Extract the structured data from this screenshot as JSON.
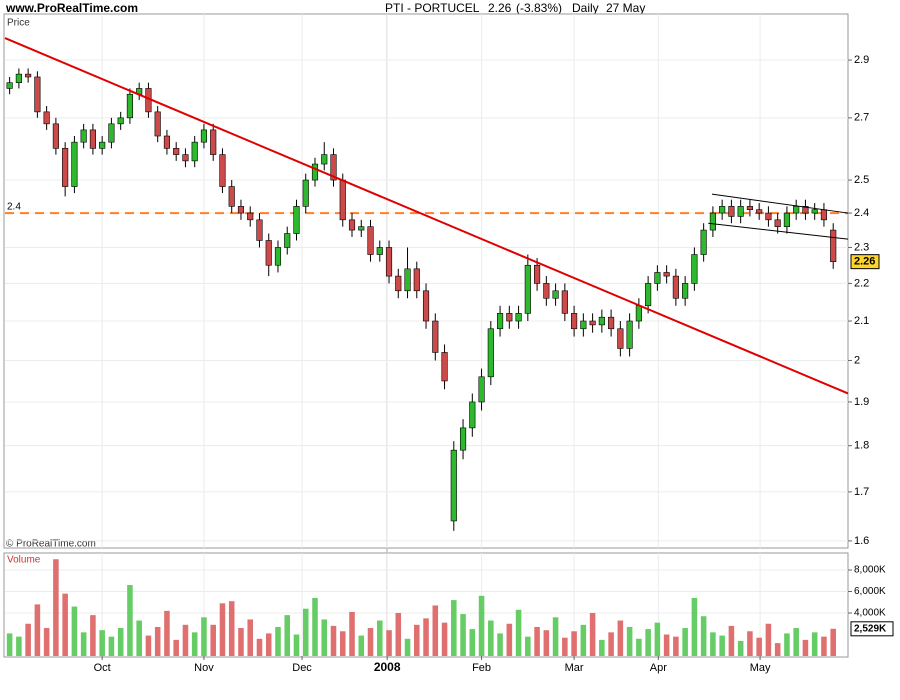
{
  "chart_data": {
    "type": "candlestick",
    "site": "www.ProRealTime.com",
    "symbol": "PTI - PORTUCEL",
    "change": "(-3.83%)",
    "period": "Daily",
    "date": "27 May",
    "copyright": "© ProRealTime.com",
    "price_label": "Price",
    "volume_label": "Volume",
    "log_scale": true,
    "grid": true,
    "up_color": "#2db82d",
    "down_color": "#cc4a4a",
    "volume_up_color": "#66cc66",
    "volume_down_color": "#e07070",
    "xlim": [
      0,
      91.1
    ],
    "xticks": [
      {
        "value": 10.5,
        "label": "Oct"
      },
      {
        "value": 21.5,
        "label": "Nov"
      },
      {
        "value": 32.1,
        "label": "Dec"
      },
      {
        "value": 41.3,
        "label": "2008"
      },
      {
        "value": 51.5,
        "label": "Feb"
      },
      {
        "value": 61.5,
        "label": "Mar"
      },
      {
        "value": 70.6,
        "label": "Apr"
      },
      {
        "value": 81.6,
        "label": "May"
      }
    ],
    "ylim": [
      1.586,
      3.07
    ],
    "yticks": [
      2.9,
      2.7,
      2.5,
      2.4,
      2.3,
      2.2,
      2.1,
      2,
      1.9,
      1.8,
      1.7,
      1.6
    ],
    "open": [
      2.8,
      2.82,
      2.85,
      2.84,
      2.72,
      2.68,
      2.6,
      2.48,
      2.62,
      2.66,
      2.6,
      2.62,
      2.68,
      2.7,
      2.78,
      2.8,
      2.72,
      2.64,
      2.6,
      2.58,
      2.56,
      2.62,
      2.66,
      2.58,
      2.48,
      2.42,
      2.4,
      2.38,
      2.32,
      2.25,
      2.3,
      2.34,
      2.42,
      2.5,
      2.55,
      2.58,
      2.5,
      2.38,
      2.35,
      2.36,
      2.28,
      2.3,
      2.22,
      2.18,
      2.24,
      2.18,
      2.1,
      2.02,
      1.64,
      1.79,
      1.84,
      1.9,
      1.96,
      2.08,
      2.12,
      2.1,
      2.12,
      2.25,
      2.2,
      2.16,
      2.18,
      2.12,
      2.08,
      2.1,
      2.09,
      2.11,
      2.08,
      2.03,
      2.1,
      2.14,
      2.2,
      2.23,
      2.22,
      2.16,
      2.2,
      2.28,
      2.35,
      2.4,
      2.42,
      2.39,
      2.42,
      2.41,
      2.4,
      2.38,
      2.36,
      2.4,
      2.42,
      2.4,
      2.41,
      2.35
    ],
    "high": [
      2.84,
      2.87,
      2.87,
      2.86,
      2.74,
      2.7,
      2.62,
      2.64,
      2.68,
      2.68,
      2.64,
      2.7,
      2.72,
      2.8,
      2.82,
      2.82,
      2.74,
      2.66,
      2.62,
      2.6,
      2.64,
      2.68,
      2.68,
      2.6,
      2.5,
      2.44,
      2.42,
      2.4,
      2.34,
      2.32,
      2.36,
      2.44,
      2.52,
      2.57,
      2.62,
      2.6,
      2.52,
      2.4,
      2.38,
      2.38,
      2.32,
      2.32,
      2.24,
      2.3,
      2.26,
      2.2,
      2.12,
      2.04,
      1.81,
      1.86,
      1.92,
      1.98,
      2.1,
      2.14,
      2.14,
      2.14,
      2.28,
      2.27,
      2.22,
      2.2,
      2.2,
      2.14,
      2.12,
      2.12,
      2.13,
      2.13,
      2.1,
      2.12,
      2.16,
      2.22,
      2.25,
      2.25,
      2.24,
      2.22,
      2.3,
      2.37,
      2.42,
      2.44,
      2.44,
      2.44,
      2.44,
      2.43,
      2.42,
      2.4,
      2.42,
      2.44,
      2.44,
      2.43,
      2.43,
      2.37
    ],
    "low": [
      2.78,
      2.8,
      2.82,
      2.7,
      2.66,
      2.58,
      2.45,
      2.46,
      2.6,
      2.58,
      2.58,
      2.6,
      2.66,
      2.68,
      2.76,
      2.7,
      2.62,
      2.58,
      2.56,
      2.54,
      2.54,
      2.6,
      2.56,
      2.46,
      2.4,
      2.38,
      2.36,
      2.3,
      2.22,
      2.23,
      2.28,
      2.32,
      2.4,
      2.48,
      2.53,
      2.48,
      2.36,
      2.33,
      2.33,
      2.26,
      2.26,
      2.2,
      2.16,
      2.16,
      2.16,
      2.08,
      2.0,
      1.93,
      1.62,
      1.77,
      1.82,
      1.88,
      1.94,
      2.06,
      2.08,
      2.08,
      2.1,
      2.18,
      2.14,
      2.14,
      2.1,
      2.06,
      2.06,
      2.07,
      2.07,
      2.06,
      2.01,
      2.01,
      2.08,
      2.12,
      2.18,
      2.2,
      2.14,
      2.14,
      2.18,
      2.26,
      2.33,
      2.38,
      2.37,
      2.37,
      2.39,
      2.38,
      2.36,
      2.34,
      2.34,
      2.38,
      2.38,
      2.38,
      2.36,
      2.24
    ],
    "close": [
      2.82,
      2.85,
      2.84,
      2.72,
      2.68,
      2.6,
      2.48,
      2.62,
      2.66,
      2.6,
      2.62,
      2.68,
      2.7,
      2.78,
      2.8,
      2.72,
      2.64,
      2.6,
      2.58,
      2.56,
      2.62,
      2.66,
      2.58,
      2.48,
      2.42,
      2.4,
      2.38,
      2.32,
      2.25,
      2.3,
      2.34,
      2.42,
      2.5,
      2.55,
      2.58,
      2.5,
      2.38,
      2.35,
      2.36,
      2.28,
      2.3,
      2.22,
      2.18,
      2.24,
      2.18,
      2.1,
      2.02,
      1.95,
      1.79,
      1.84,
      1.9,
      1.96,
      2.08,
      2.12,
      2.1,
      2.12,
      2.25,
      2.2,
      2.16,
      2.18,
      2.12,
      2.08,
      2.1,
      2.09,
      2.11,
      2.08,
      2.03,
      2.1,
      2.14,
      2.2,
      2.23,
      2.22,
      2.16,
      2.2,
      2.28,
      2.35,
      2.4,
      2.42,
      2.39,
      2.42,
      2.41,
      2.4,
      2.38,
      2.36,
      2.4,
      2.42,
      2.4,
      2.41,
      2.38,
      2.26
    ],
    "volume": [
      2100,
      1800,
      3000,
      4800,
      2600,
      9000,
      5800,
      4600,
      2200,
      3800,
      2400,
      1800,
      2600,
      6600,
      3300,
      1900,
      2700,
      4200,
      1500,
      2900,
      2200,
      3600,
      2900,
      4900,
      5100,
      2600,
      3400,
      1600,
      2100,
      2700,
      3800,
      2000,
      4400,
      5400,
      3400,
      2800,
      2300,
      4100,
      1900,
      2600,
      3300,
      2400,
      4000,
      1600,
      2900,
      3500,
      4700,
      3100,
      5200,
      3900,
      2500,
      5600,
      3300,
      2100,
      3000,
      4300,
      1800,
      2700,
      2400,
      3600,
      1700,
      2300,
      2900,
      4000,
      1500,
      2200,
      3300,
      2700,
      1600,
      2500,
      3100,
      2000,
      1800,
      2600,
      5400,
      3700,
      2200,
      1900,
      2800,
      1400,
      2300,
      1700,
      3000,
      1200,
      2100,
      2600,
      1500,
      2200,
      1800,
      2529
    ],
    "volume_ylim": [
      0,
      9580
    ],
    "volume_yticks": [
      {
        "value": 8000,
        "label": "8,000K"
      },
      {
        "value": 6000,
        "label": "6,000K"
      },
      {
        "value": 4000,
        "label": "4,000K"
      }
    ],
    "last_volume": {
      "value": 2529,
      "label": "2,529K"
    },
    "hlines": [
      {
        "value": 2.4,
        "color": "#ff7f2a"
      }
    ],
    "trend_lines": [
      {
        "color": "#e00000",
        "x": [
          0,
          91.1
        ],
        "values": [
          2.98,
          1.92
        ]
      },
      {
        "color": "#000000",
        "x": [
          76.4,
          91.1
        ],
        "values": [
          2.457,
          2.4
        ]
      },
      {
        "color": "#000000",
        "x": [
          76.0,
          91.1
        ],
        "values": [
          2.37,
          2.324
        ]
      }
    ]
  }
}
